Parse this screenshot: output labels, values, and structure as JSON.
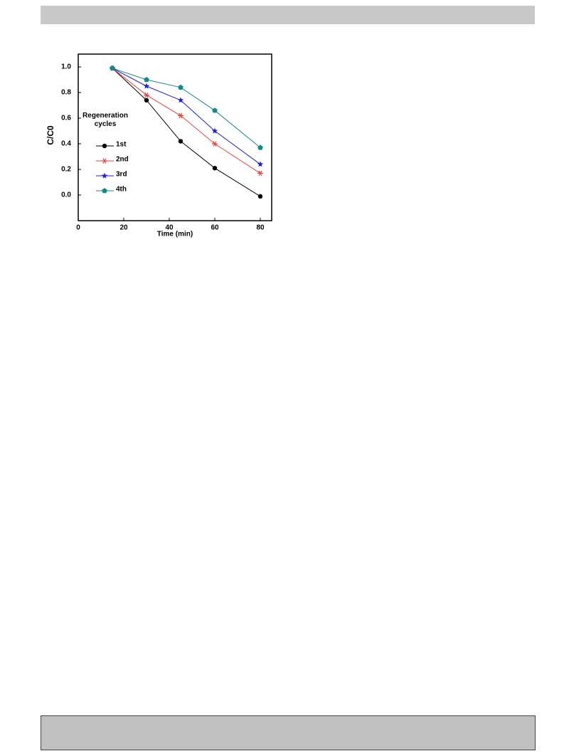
{
  "chart_data": {
    "type": "line",
    "x_label": "Time (min)",
    "y_label": "C/C0",
    "legend_title": "Regeneration cycles",
    "x": [
      15,
      30,
      45,
      60,
      80
    ],
    "series": [
      {
        "name": "1st",
        "color": "#000000",
        "marker": "circle",
        "values": [
          0.99,
          0.74,
          0.42,
          0.21,
          -0.01
        ]
      },
      {
        "name": "2nd",
        "color": "#e8413c",
        "marker": "asterisk",
        "values": [
          0.99,
          0.78,
          0.62,
          0.4,
          0.17
        ]
      },
      {
        "name": "3rd",
        "color": "#1f1fd6",
        "marker": "star",
        "values": [
          0.99,
          0.85,
          0.74,
          0.5,
          0.24
        ]
      },
      {
        "name": "4th",
        "color": "#138a8a",
        "marker": "pentagon",
        "values": [
          0.99,
          0.9,
          0.84,
          0.66,
          0.37
        ]
      }
    ],
    "xlim": [
      0,
      85
    ],
    "xticks": [
      0,
      20,
      40,
      60,
      80
    ],
    "ylim": [
      -0.2,
      1.1
    ],
    "yticks": [
      {
        "value": 0,
        "label": "0.0"
      },
      0.2,
      0.4,
      0.6,
      0.8,
      {
        "value": 1,
        "label": "1.0"
      }
    ]
  }
}
